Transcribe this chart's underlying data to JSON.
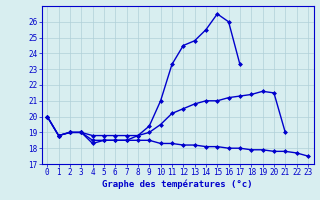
{
  "xlabel": "Graphe des températures (°c)",
  "hours": [
    0,
    1,
    2,
    3,
    4,
    5,
    6,
    7,
    8,
    9,
    10,
    11,
    12,
    13,
    14,
    15,
    16,
    17,
    18,
    19,
    20,
    21,
    22,
    23
  ],
  "line_max": [
    20.0,
    18.8,
    19.0,
    19.0,
    18.3,
    18.5,
    18.5,
    18.5,
    18.8,
    19.4,
    21.0,
    23.3,
    24.5,
    24.8,
    25.5,
    26.5,
    26.0,
    23.3,
    null,
    null,
    null,
    null,
    null,
    null
  ],
  "line_cur": [
    20.0,
    18.8,
    19.0,
    19.0,
    18.8,
    18.8,
    18.8,
    18.8,
    18.8,
    19.0,
    19.5,
    20.2,
    20.5,
    20.8,
    21.0,
    21.0,
    21.2,
    21.3,
    21.4,
    21.6,
    21.5,
    19.0,
    null,
    null
  ],
  "line_min": [
    20.0,
    18.8,
    19.0,
    19.0,
    18.5,
    18.5,
    18.5,
    18.5,
    18.5,
    18.5,
    18.3,
    18.3,
    18.2,
    18.2,
    18.1,
    18.1,
    18.0,
    18.0,
    17.9,
    17.9,
    17.8,
    17.8,
    17.7,
    17.5
  ],
  "bg_color": "#d8eef0",
  "grid_color": "#b0d0d8",
  "line_color": "#0000cc",
  "ylim": [
    17,
    27
  ],
  "yticks": [
    17,
    18,
    19,
    20,
    21,
    22,
    23,
    24,
    25,
    26
  ],
  "xticks": [
    0,
    1,
    2,
    3,
    4,
    5,
    6,
    7,
    8,
    9,
    10,
    11,
    12,
    13,
    14,
    15,
    16,
    17,
    18,
    19,
    20,
    21,
    22,
    23
  ],
  "marker": "D",
  "markersize": 2.0,
  "linewidth": 1.0,
  "xlabel_fontsize": 6.5,
  "tick_fontsize": 5.5
}
